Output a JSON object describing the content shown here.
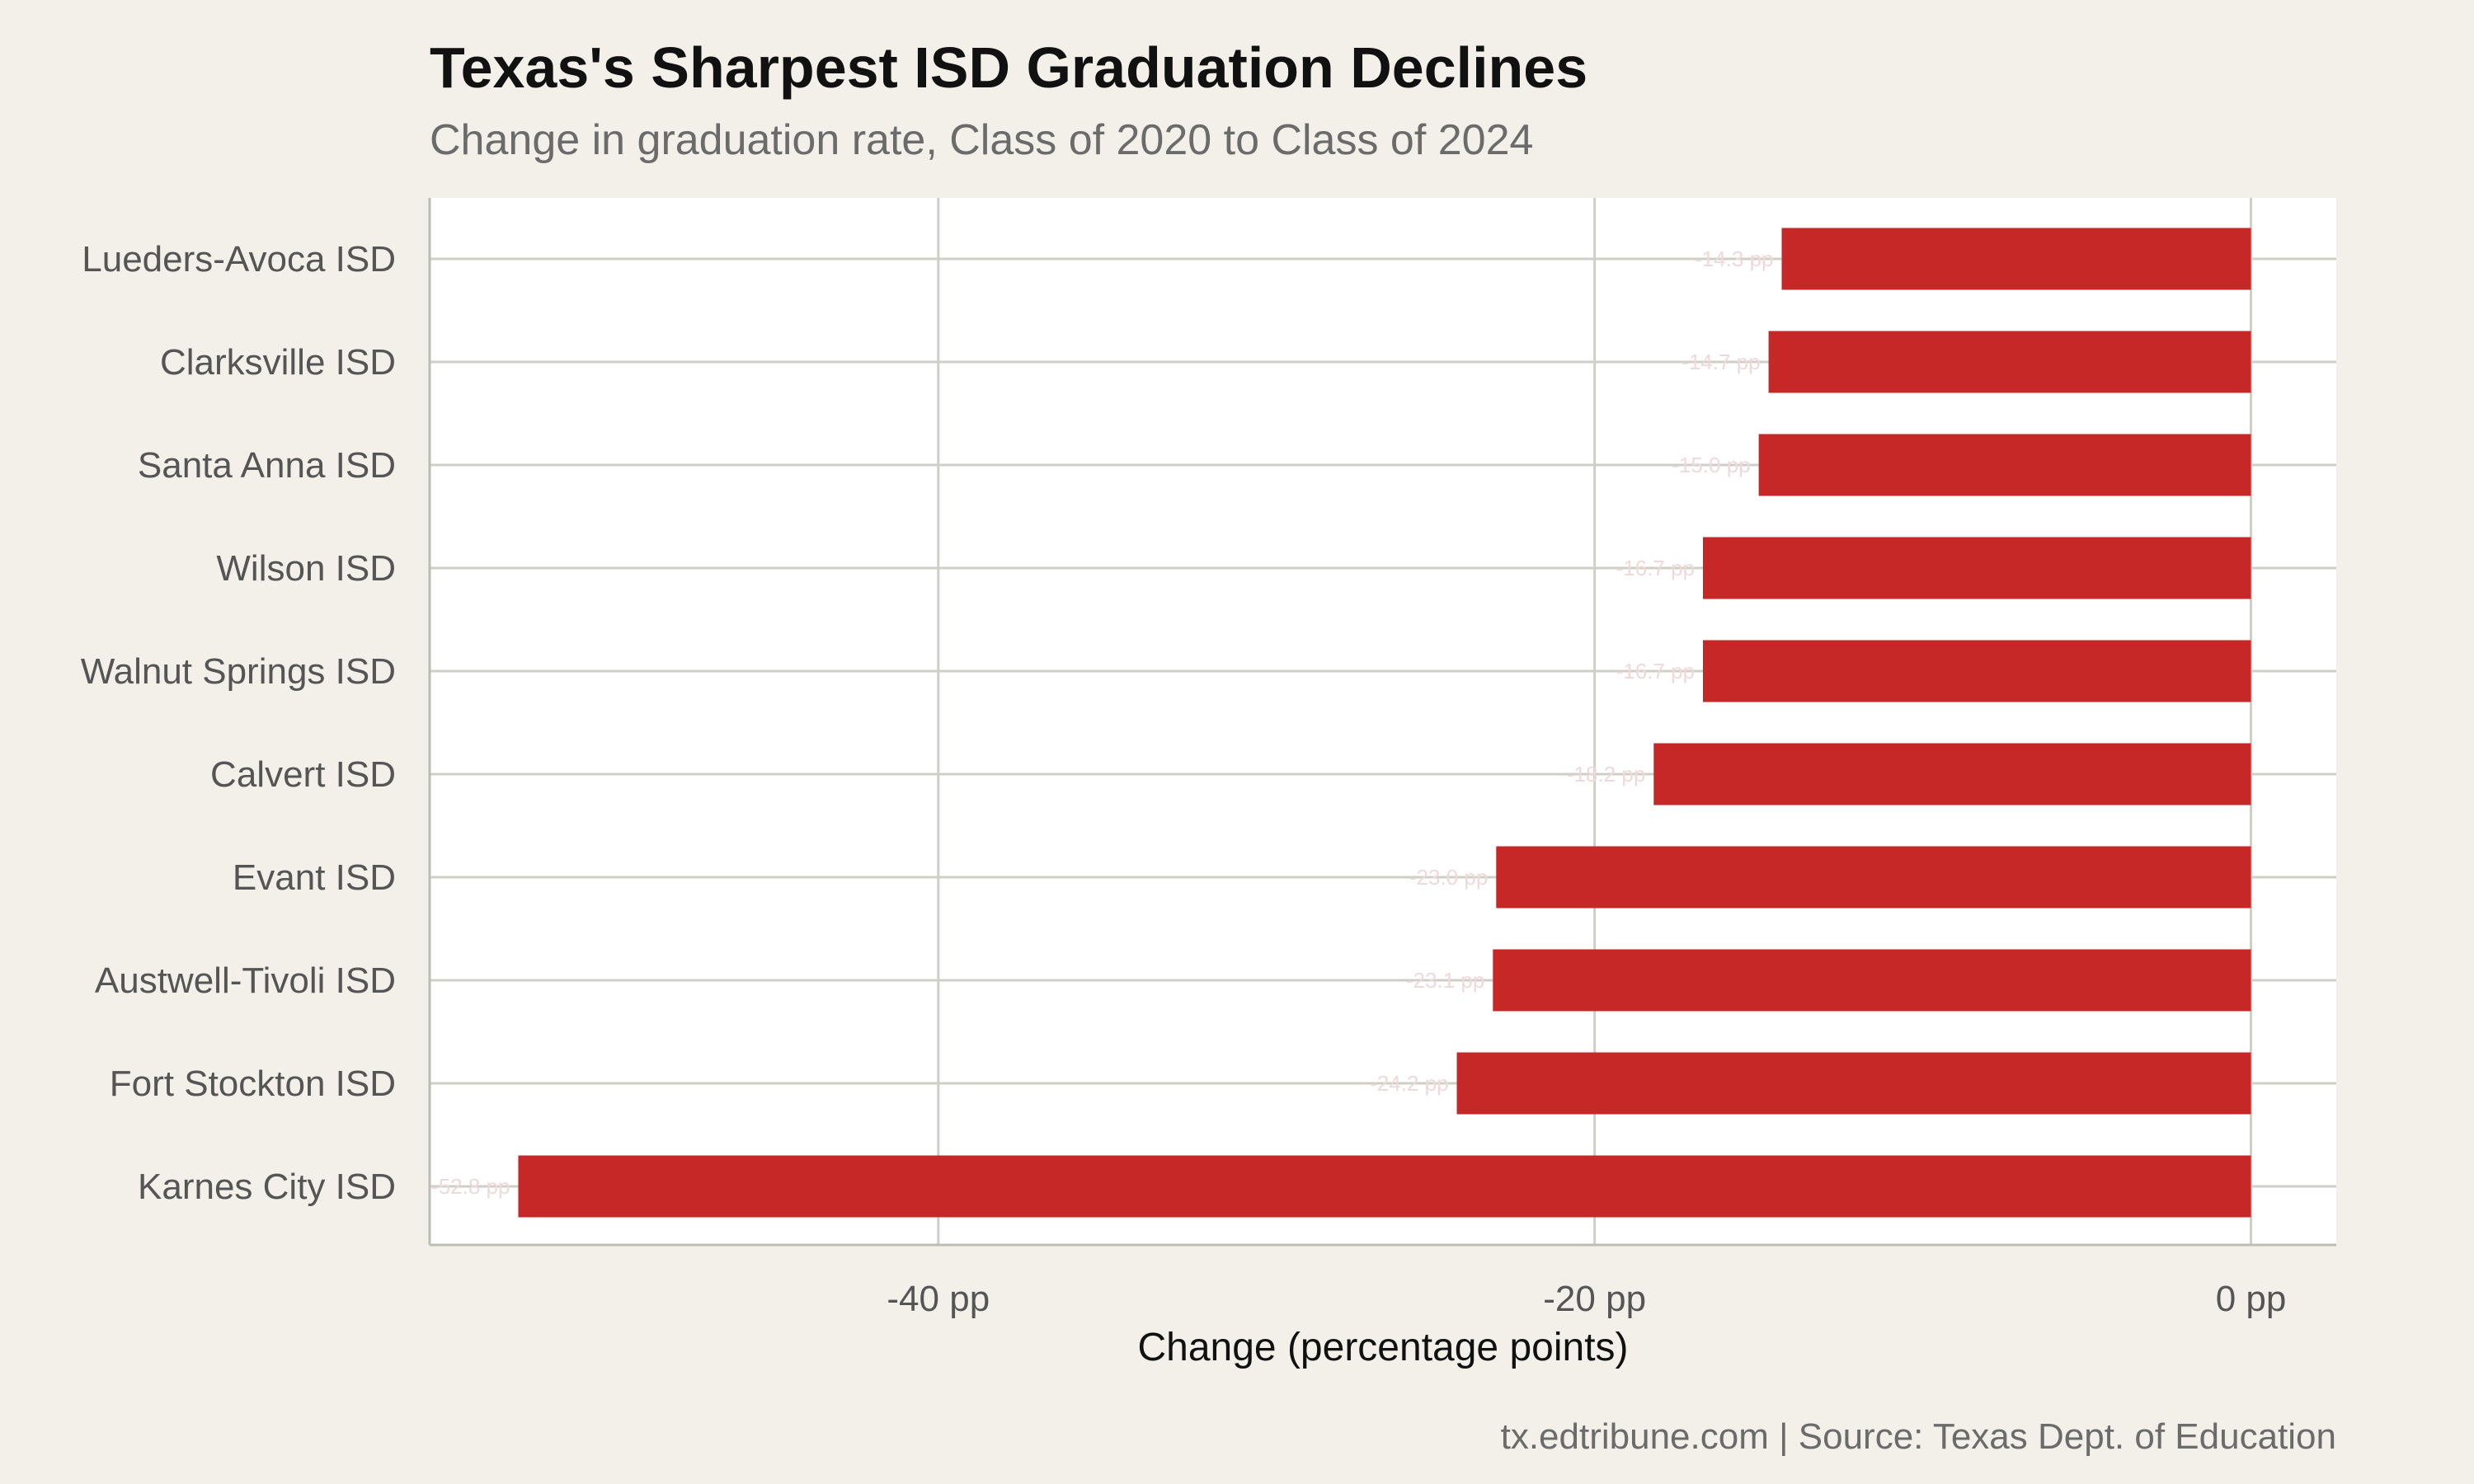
{
  "chart_data": {
    "type": "bar",
    "orientation": "horizontal",
    "title": "Texas's Sharpest ISD Graduation Declines",
    "subtitle": "Change in graduation rate, Class of 2020 to Class of 2024",
    "xlabel": "Change (percentage points)",
    "ylabel": "",
    "caption": "tx.edtribune.com | Source: Texas Dept. of Education",
    "categories": [
      "Lueders-Avoca ISD",
      "Clarksville ISD",
      "Santa Anna ISD",
      "Wilson ISD",
      "Walnut Springs ISD",
      "Calvert ISD",
      "Evant ISD",
      "Austwell-Tivoli ISD",
      "Fort Stockton ISD",
      "Karnes City ISD"
    ],
    "values": [
      -14.3,
      -14.7,
      -15.0,
      -16.7,
      -16.7,
      -18.2,
      -23.0,
      -23.1,
      -24.2,
      -52.8
    ],
    "xlim": [
      -55.5,
      2.6
    ],
    "xticks": [
      -40,
      -20,
      0
    ],
    "xtick_labels": [
      "-40 pp",
      "-20 pp",
      "0 pp"
    ],
    "grid": true,
    "bar_color": "#c62828",
    "background_color": "#f3f0ea",
    "panel_color": "#ffffff"
  }
}
